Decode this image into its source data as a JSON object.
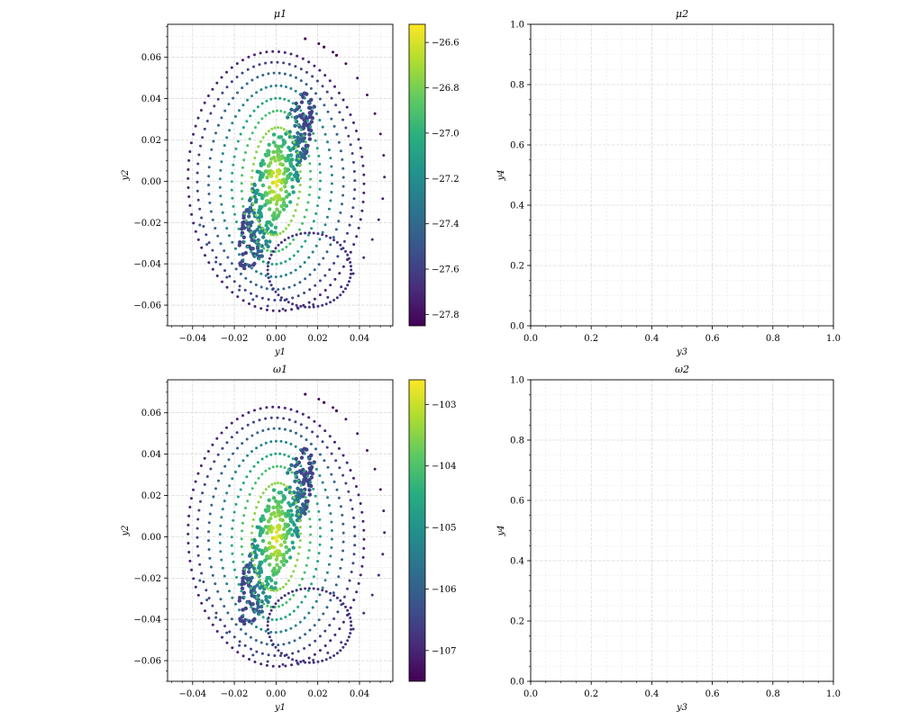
{
  "chart_data": [
    {
      "type": "scatter",
      "title": "μ1",
      "xlabel": "y1",
      "ylabel": "y2",
      "xlim": [
        -0.052,
        0.056
      ],
      "ylim": [
        -0.07,
        0.076
      ],
      "xticks": [
        -0.04,
        -0.02,
        0.0,
        0.02,
        0.04
      ],
      "xtick_labels": [
        "−0.04",
        "−0.02",
        "0.00",
        "0.02",
        "0.04"
      ],
      "yticks": [
        -0.06,
        -0.04,
        -0.02,
        0.0,
        0.02,
        0.04,
        0.06
      ],
      "ytick_labels": [
        "−0.06",
        "−0.04",
        "−0.02",
        "0.00",
        "0.02",
        "0.04",
        "0.06"
      ],
      "grid": true,
      "colormap": "viridis",
      "colorbar": {
        "range": [
          -27.85,
          -26.52
        ],
        "ticks": [
          -27.8,
          -27.6,
          -27.4,
          -27.2,
          -27.0,
          -26.8,
          -26.6
        ],
        "tick_labels": [
          "−27.8",
          "−27.6",
          "−27.4",
          "−27.2",
          "−27.0",
          "−26.8",
          "−26.6"
        ]
      },
      "points_note": "dense spiral scatter; points generated procedurally from the visible envelope"
    },
    {
      "type": "scatter",
      "title": "μ2",
      "xlabel": "y3",
      "ylabel": "y4",
      "xlim": [
        0,
        1
      ],
      "ylim": [
        0,
        1
      ],
      "xticks": [
        0.0,
        0.2,
        0.4,
        0.6,
        0.8,
        1.0
      ],
      "xtick_labels": [
        "0.0",
        "0.2",
        "0.4",
        "0.6",
        "0.8",
        "1.0"
      ],
      "yticks": [
        0.0,
        0.2,
        0.4,
        0.6,
        0.8,
        1.0
      ],
      "ytick_labels": [
        "0.0",
        "0.2",
        "0.4",
        "0.6",
        "0.8",
        "1.0"
      ],
      "grid": true,
      "points": []
    },
    {
      "type": "scatter",
      "title": "ω1",
      "xlabel": "y1",
      "ylabel": "y2",
      "xlim": [
        -0.052,
        0.056
      ],
      "ylim": [
        -0.07,
        0.076
      ],
      "xticks": [
        -0.04,
        -0.02,
        0.0,
        0.02,
        0.04
      ],
      "xtick_labels": [
        "−0.04",
        "−0.02",
        "0.00",
        "0.02",
        "0.04"
      ],
      "yticks": [
        -0.06,
        -0.04,
        -0.02,
        0.0,
        0.02,
        0.04,
        0.06
      ],
      "ytick_labels": [
        "−0.06",
        "−0.04",
        "−0.02",
        "0.00",
        "0.02",
        "0.04",
        "0.06"
      ],
      "grid": true,
      "colormap": "viridis",
      "colorbar": {
        "range": [
          -107.5,
          -102.6
        ],
        "ticks": [
          -107,
          -106,
          -105,
          -104,
          -103
        ],
        "tick_labels": [
          "−107",
          "−106",
          "−105",
          "−104",
          "−103"
        ]
      },
      "points_note": "dense spiral scatter; points generated procedurally from the visible envelope"
    },
    {
      "type": "scatter",
      "title": "ω2",
      "xlabel": "y3",
      "ylabel": "y4",
      "xlim": [
        0,
        1
      ],
      "ylim": [
        0,
        1
      ],
      "xticks": [
        0.0,
        0.2,
        0.4,
        0.6,
        0.8,
        1.0
      ],
      "xtick_labels": [
        "0.0",
        "0.2",
        "0.4",
        "0.6",
        "0.8",
        "1.0"
      ],
      "yticks": [
        0.0,
        0.2,
        0.4,
        0.6,
        0.8,
        1.0
      ],
      "ytick_labels": [
        "0.0",
        "0.2",
        "0.4",
        "0.6",
        "0.8",
        "1.0"
      ],
      "grid": true,
      "points": []
    }
  ]
}
